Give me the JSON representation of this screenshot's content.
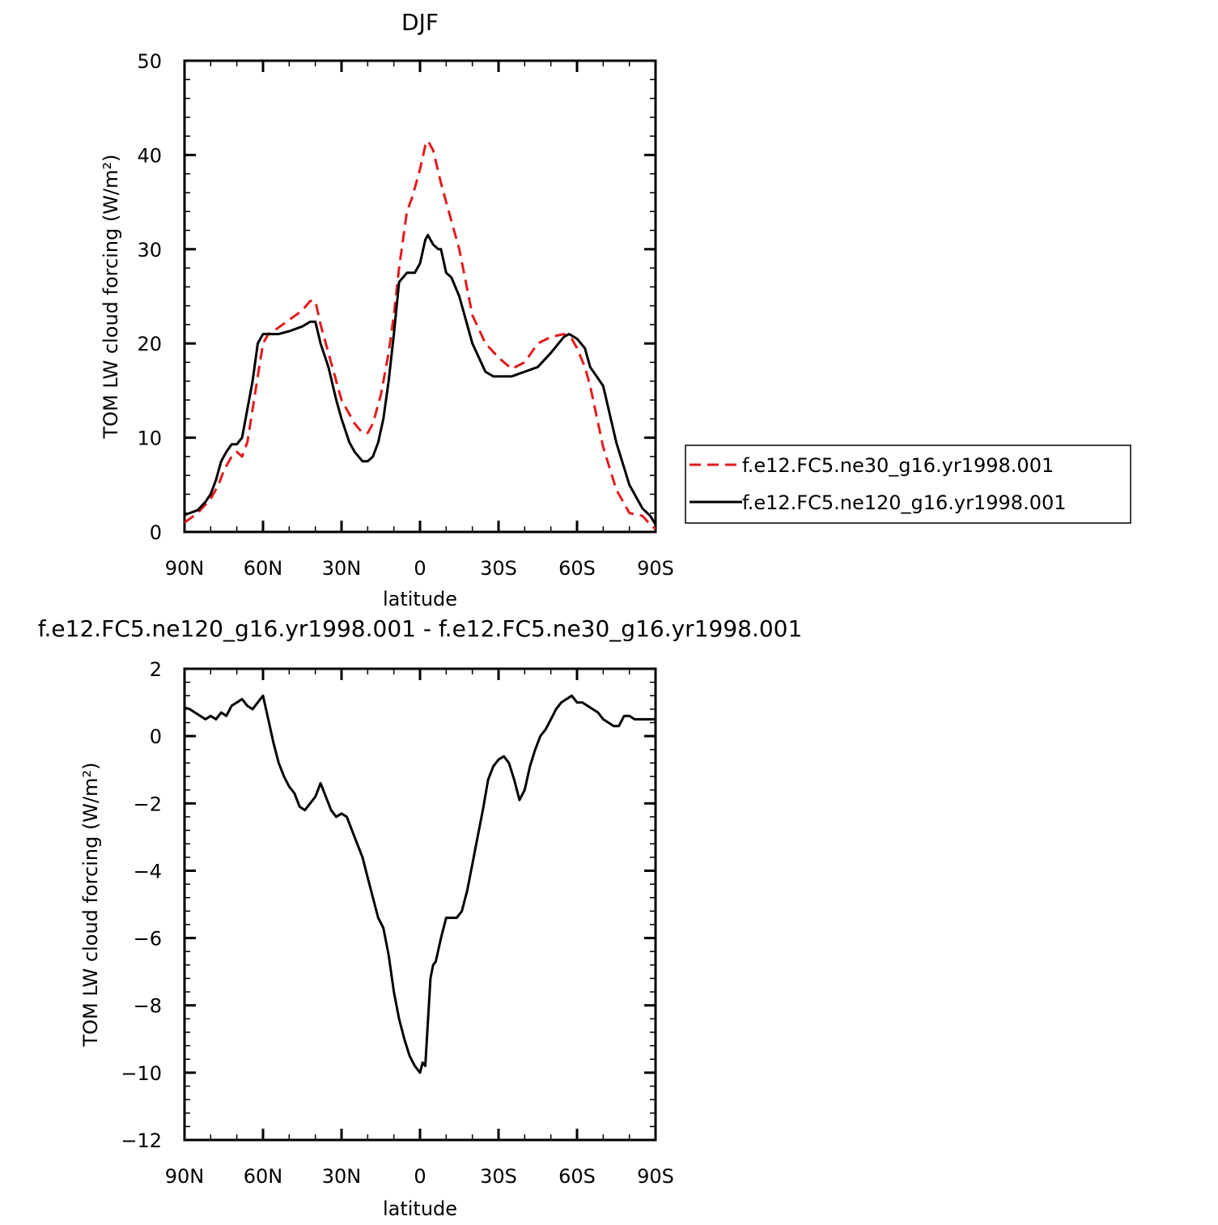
{
  "chart_data": [
    {
      "type": "line",
      "title": "DJF",
      "xlabel": "latitude",
      "ylabel": "TOM LW cloud forcing (W/m²)",
      "xlim": [
        -90,
        90
      ],
      "ylim": [
        0,
        50
      ],
      "x_ticks": [
        -90,
        -60,
        -30,
        0,
        30,
        60,
        90
      ],
      "x_tick_labels": [
        "90N",
        "60N",
        "30N",
        "0",
        "30S",
        "60S",
        "90S"
      ],
      "y_ticks": [
        0,
        10,
        20,
        30,
        40,
        50
      ],
      "y_tick_labels": [
        "0",
        "10",
        "20",
        "30",
        "40",
        "50"
      ],
      "grid": false,
      "legend_position": "right",
      "series": [
        {
          "name": "f.e12.FC5.ne30_g16.yr1998.001",
          "color": "#e41a1c",
          "dash": "dashed",
          "x": [
            -90,
            -85,
            -80,
            -77,
            -75,
            -72,
            -70,
            -68,
            -66,
            -64,
            -62,
            -60,
            -58,
            -55,
            -50,
            -45,
            -42,
            -40,
            -38,
            -35,
            -32,
            -30,
            -25,
            -22,
            -20,
            -18,
            -15,
            -12,
            -10,
            -8,
            -5,
            -3,
            0,
            2,
            3,
            5,
            8,
            10,
            15,
            20,
            25,
            30,
            35,
            40,
            45,
            50,
            55,
            58,
            60,
            63,
            65,
            70,
            75,
            80,
            85,
            88,
            90
          ],
          "y": [
            1.0,
            2.0,
            3.5,
            5.0,
            6.5,
            8.0,
            8.5,
            8.0,
            9.5,
            13.0,
            16.5,
            20.0,
            21.0,
            21.5,
            22.5,
            23.5,
            24.5,
            24.5,
            22.0,
            19.0,
            16.0,
            14.0,
            11.5,
            10.5,
            10.5,
            11.5,
            14.5,
            19.0,
            23.0,
            28.0,
            34.0,
            35.5,
            38.5,
            41.0,
            41.5,
            40.5,
            37.0,
            35.0,
            30.0,
            23.0,
            20.0,
            18.5,
            17.3,
            18.0,
            20.0,
            20.7,
            21.0,
            20.5,
            19.5,
            17.5,
            15.5,
            9.0,
            4.5,
            2.0,
            1.7,
            0.8,
            0.3
          ]
        },
        {
          "name": "f.e12.FC5.ne120_g16.yr1998.001",
          "color": "#000000",
          "dash": "solid",
          "x": [
            -90,
            -85,
            -82,
            -80,
            -78,
            -76,
            -74,
            -72,
            -70,
            -68,
            -66,
            -64,
            -62,
            -60,
            -58,
            -56,
            -54,
            -50,
            -45,
            -42,
            -40,
            -38,
            -35,
            -32,
            -30,
            -27,
            -25,
            -22,
            -20,
            -18,
            -16,
            -14,
            -12,
            -10,
            -8,
            -5,
            -2,
            0,
            2,
            3,
            4,
            5,
            7,
            8,
            10,
            12,
            15,
            20,
            25,
            28,
            30,
            35,
            40,
            45,
            50,
            55,
            57,
            60,
            63,
            65,
            70,
            75,
            80,
            85,
            88,
            90
          ],
          "y": [
            1.8,
            2.3,
            3.2,
            4.0,
            5.5,
            7.5,
            8.5,
            9.3,
            9.3,
            10.0,
            13.0,
            16.0,
            20.0,
            21.0,
            21.0,
            21.0,
            21.0,
            21.3,
            21.8,
            22.3,
            22.3,
            20.0,
            17.5,
            14.0,
            12.0,
            9.5,
            8.5,
            7.5,
            7.5,
            8.0,
            9.5,
            12.0,
            16.0,
            21.0,
            26.5,
            27.5,
            27.5,
            28.5,
            31.0,
            31.5,
            31.0,
            30.5,
            30.0,
            30.0,
            27.5,
            27.0,
            25.0,
            20.0,
            17.0,
            16.5,
            16.5,
            16.5,
            17.0,
            17.5,
            19.0,
            20.7,
            21.0,
            20.5,
            19.5,
            17.5,
            15.5,
            9.5,
            5.0,
            2.5,
            1.7,
            0.8
          ]
        }
      ]
    },
    {
      "type": "line",
      "title": "f.e12.FC5.ne120_g16.yr1998.001 - f.e12.FC5.ne30_g16.yr1998.001",
      "xlabel": "latitude",
      "ylabel": "TOM LW cloud forcing (W/m²)",
      "xlim": [
        -90,
        90
      ],
      "ylim": [
        -12,
        2
      ],
      "x_ticks": [
        -90,
        -60,
        -30,
        0,
        30,
        60,
        90
      ],
      "x_tick_labels": [
        "90N",
        "60N",
        "30N",
        "0",
        "30S",
        "60S",
        "90S"
      ],
      "y_ticks": [
        -12,
        -10,
        -8,
        -6,
        -4,
        -2,
        0,
        2
      ],
      "y_tick_labels": [
        "−12",
        "−10",
        "−8",
        "−6",
        "−4",
        "−2",
        "0",
        "2"
      ],
      "grid": false,
      "series": [
        {
          "color": "#000000",
          "dash": "solid",
          "x": [
            -90,
            -88,
            -86,
            -84,
            -82,
            -80,
            -78,
            -76,
            -74,
            -72,
            -70,
            -68,
            -66,
            -64,
            -62,
            -60,
            -58,
            -56,
            -54,
            -52,
            -50,
            -48,
            -46,
            -44,
            -42,
            -40,
            -38,
            -36,
            -34,
            -32,
            -30,
            -28,
            -26,
            -24,
            -22,
            -20,
            -18,
            -16,
            -14,
            -12,
            -10,
            -8,
            -6,
            -4,
            -2,
            0,
            1,
            2,
            3,
            4,
            5,
            6,
            8,
            10,
            12,
            14,
            16,
            18,
            20,
            22,
            24,
            26,
            28,
            30,
            32,
            34,
            36,
            38,
            40,
            42,
            44,
            46,
            48,
            50,
            52,
            54,
            56,
            58,
            60,
            62,
            64,
            66,
            68,
            70,
            72,
            74,
            76,
            78,
            80,
            82,
            84,
            86,
            88,
            90
          ],
          "y": [
            0.85,
            0.8,
            0.7,
            0.6,
            0.5,
            0.6,
            0.5,
            0.7,
            0.6,
            0.9,
            1.0,
            1.1,
            0.9,
            0.8,
            1.0,
            1.2,
            0.5,
            -0.2,
            -0.8,
            -1.2,
            -1.5,
            -1.7,
            -2.1,
            -2.2,
            -2.0,
            -1.8,
            -1.4,
            -1.8,
            -2.2,
            -2.4,
            -2.3,
            -2.4,
            -2.8,
            -3.2,
            -3.6,
            -4.2,
            -4.8,
            -5.4,
            -5.7,
            -6.5,
            -7.6,
            -8.4,
            -9.0,
            -9.5,
            -9.8,
            -10.0,
            -9.7,
            -9.8,
            -8.5,
            -7.2,
            -6.8,
            -6.7,
            -6.0,
            -5.4,
            -5.4,
            -5.4,
            -5.2,
            -4.6,
            -3.8,
            -3.0,
            -2.2,
            -1.3,
            -0.9,
            -0.7,
            -0.6,
            -0.8,
            -1.3,
            -1.9,
            -1.6,
            -0.9,
            -0.4,
            0.0,
            0.2,
            0.5,
            0.8,
            1.0,
            1.1,
            1.2,
            1.0,
            1.0,
            0.9,
            0.8,
            0.7,
            0.5,
            0.4,
            0.3,
            0.3,
            0.6,
            0.6,
            0.5,
            0.5,
            0.5,
            0.5,
            0.5
          ]
        }
      ]
    }
  ]
}
